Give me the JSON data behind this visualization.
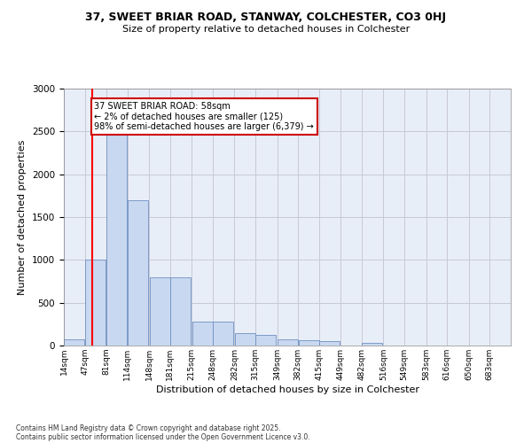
{
  "title_line1": "37, SWEET BRIAR ROAD, STANWAY, COLCHESTER, CO3 0HJ",
  "title_line2": "Size of property relative to detached houses in Colchester",
  "xlabel": "Distribution of detached houses by size in Colchester",
  "ylabel": "Number of detached properties",
  "footer_line1": "Contains HM Land Registry data © Crown copyright and database right 2025.",
  "footer_line2": "Contains public sector information licensed under the Open Government Licence v3.0.",
  "annotation_title": "37 SWEET BRIAR ROAD: 58sqm",
  "annotation_line2": "← 2% of detached houses are smaller (125)",
  "annotation_line3": "98% of semi-detached houses are larger (6,379) →",
  "property_line_x": 58,
  "bar_color": "#c8d8f0",
  "bar_edge_color": "#7090c0",
  "line_color": "#ff0000",
  "annotation_box_color": "#cc0000",
  "grid_color": "#c8c8d8",
  "background_color": "#e8eef8",
  "bins": [
    14,
    47,
    81,
    114,
    148,
    181,
    215,
    248,
    282,
    315,
    349,
    382,
    415,
    449,
    482,
    516,
    549,
    583,
    616,
    650,
    683
  ],
  "bin_labels": [
    "14sqm",
    "47sqm",
    "81sqm",
    "114sqm",
    "148sqm",
    "181sqm",
    "215sqm",
    "248sqm",
    "282sqm",
    "315sqm",
    "349sqm",
    "382sqm",
    "415sqm",
    "449sqm",
    "482sqm",
    "516sqm",
    "549sqm",
    "583sqm",
    "616sqm",
    "650sqm",
    "683sqm"
  ],
  "counts": [
    75,
    1000,
    2500,
    1700,
    800,
    800,
    280,
    280,
    150,
    120,
    75,
    60,
    50,
    0,
    30,
    0,
    0,
    0,
    0,
    0,
    0
  ],
  "ylim": [
    0,
    3000
  ],
  "yticks": [
    0,
    500,
    1000,
    1500,
    2000,
    2500,
    3000
  ]
}
